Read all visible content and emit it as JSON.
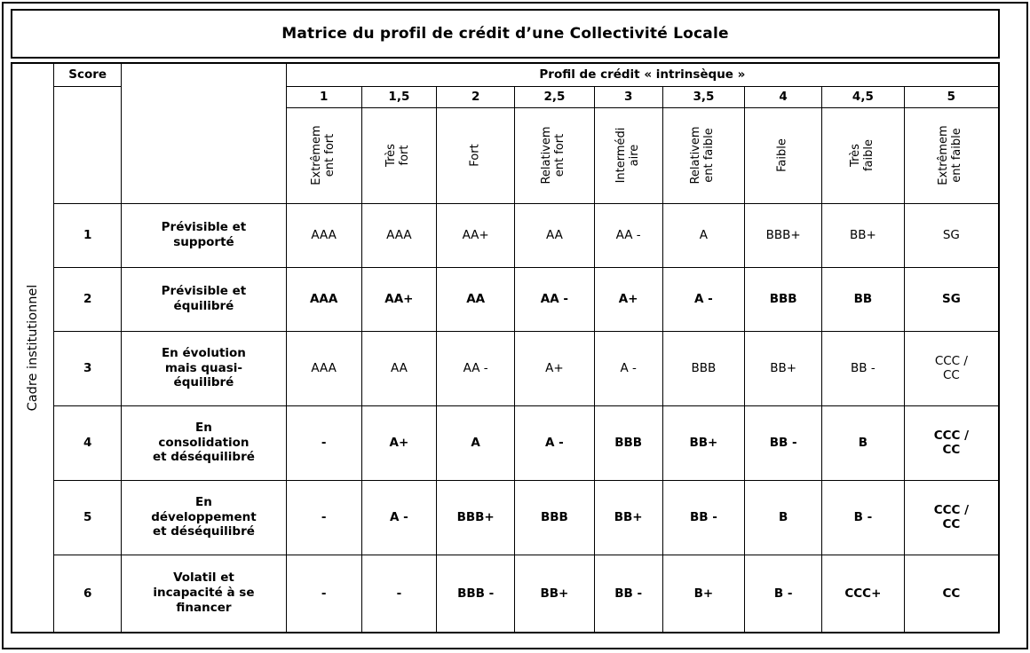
{
  "title": "Matrice du profil de crédit d’une Collectivité Locale",
  "left_axis_label": "Cadre institutionnel",
  "score_header": "Score",
  "profile_header": "Profil de crédit « intrinsèque »",
  "column_scores": [
    "1",
    "1,5",
    "2",
    "2,5",
    "3",
    "3,5",
    "4",
    "4,5",
    "5"
  ],
  "column_labels": [
    "Extrêmem\nent fort",
    "Très fort",
    "Fort",
    "Relativem\nent fort",
    "Intermédi\naire",
    "Relativem\nent faible",
    "Faible",
    "Très\nfaible",
    "Extrêmem\nent faible"
  ],
  "rows": [
    {
      "score": "1",
      "label": "Prévisible et\nsupporté",
      "bold": false,
      "ratings": [
        "AAA",
        "AAA",
        "AA+",
        "AA",
        "AA -",
        "A",
        "BBB+",
        "BB+",
        "SG"
      ]
    },
    {
      "score": "2",
      "label": "Prévisible et\néquilibré",
      "bold": true,
      "ratings": [
        "AAA",
        "AA+",
        "AA",
        "AA -",
        "A+",
        "A -",
        "BBB",
        "BB",
        "SG"
      ]
    },
    {
      "score": "3",
      "label": "En évolution\nmais quasi-\néquilibré",
      "bold": false,
      "ratings": [
        "AAA",
        "AA",
        "AA -",
        "A+",
        "A -",
        "BBB",
        "BB+",
        "BB -",
        "CCC /\nCC"
      ]
    },
    {
      "score": "4",
      "label": "En\nconsolidation\net déséquilibré",
      "bold": true,
      "ratings": [
        "-",
        "A+",
        "A",
        "A -",
        "BBB",
        "BB+",
        "BB -",
        "B",
        "CCC /\nCC"
      ]
    },
    {
      "score": "5",
      "label": "En\ndéveloppement\net déséquilibré",
      "bold": true,
      "ratings": [
        "-",
        "A -",
        "BBB+",
        "BBB",
        "BB+",
        "BB -",
        "B",
        "B -",
        "CCC /\nCC"
      ]
    },
    {
      "score": "6",
      "label": "Volatil et\nincapacité à se\nfinancer",
      "bold": true,
      "ratings": [
        "-",
        "-",
        "BBB -",
        "BB+",
        "BB -",
        "B+",
        "B -",
        "CCC+",
        "CC"
      ]
    }
  ]
}
